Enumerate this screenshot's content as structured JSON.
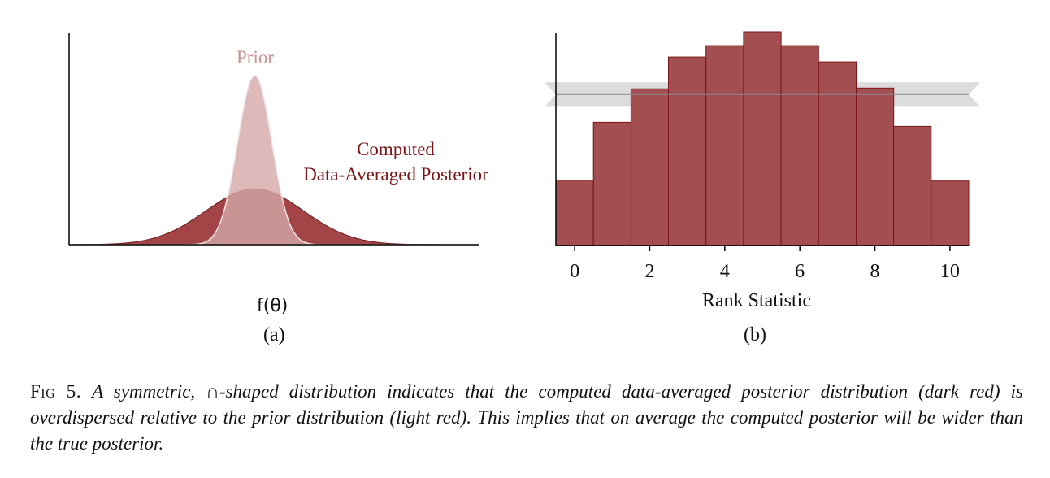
{
  "chart_data": [
    {
      "type": "area",
      "panel": "(a)",
      "xlabel": "f(θ)",
      "title": "",
      "series": [
        {
          "name": "Prior",
          "distribution": "normal",
          "mean": 0,
          "sd": 0.7,
          "peak": 1.0,
          "color": "#d4a8a8"
        },
        {
          "name": "Computed Data-Averaged Posterior",
          "distribution": "normal",
          "mean": 0,
          "sd": 2.0,
          "peak": 0.33,
          "color": "#a34547"
        }
      ],
      "annotations": [
        "Prior",
        "Computed",
        "Data-Averaged Posterior"
      ],
      "xlim": [
        -7.6,
        9.2
      ],
      "ylim": [
        0,
        1.25
      ]
    },
    {
      "type": "bar",
      "panel": "(b)",
      "xlabel": "Rank Statistic",
      "ylabel": "",
      "categories": [
        0,
        1,
        2,
        3,
        4,
        5,
        6,
        7,
        8,
        9,
        10
      ],
      "values": [
        80,
        151,
        192,
        231,
        245,
        262,
        245,
        225,
        193,
        146,
        79
      ],
      "xticks": [
        "0",
        "2",
        "4",
        "6",
        "8",
        "10"
      ],
      "xlim": [
        -0.5,
        10.5
      ],
      "ylim": [
        0,
        262
      ],
      "uniform_expectation": 185,
      "band": [
        170,
        200
      ],
      "bar_color": "#a34e50",
      "band_color": "#dcdcdc"
    }
  ],
  "caption": {
    "label": "Fig 5.",
    "text": "A symmetric, ∩-shaped distribution indicates that the computed data-averaged posterior distribution (dark red) is overdispersed relative to the prior distribution (light red). This implies that on average the computed posterior will be wider than the true posterior."
  },
  "colors": {
    "dark_red": "#a34547",
    "light_red": "#d4a8a8",
    "label_dark": "#7a1416",
    "label_light": "#c99395"
  }
}
